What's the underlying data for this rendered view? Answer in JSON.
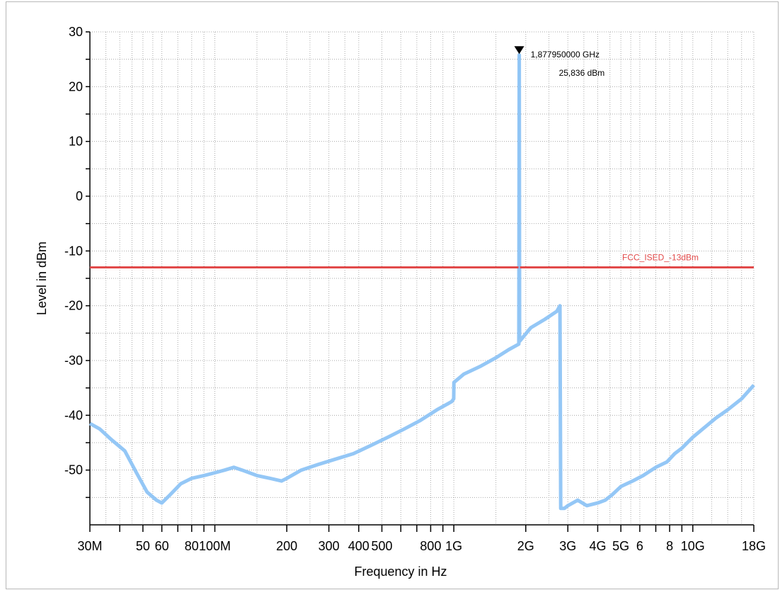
{
  "chart_data": {
    "type": "line",
    "xlabel": "Frequency in Hz",
    "ylabel": "Level in dBm",
    "xscale": "log",
    "xlim_hz": [
      30000000,
      18000000000
    ],
    "ylim": [
      -60,
      30
    ],
    "grid": true,
    "y_ticks": [
      {
        "value": 30,
        "label": "30"
      },
      {
        "value": 20,
        "label": "20"
      },
      {
        "value": 10,
        "label": "10"
      },
      {
        "value": 0,
        "label": "0"
      },
      {
        "value": -10,
        "label": "-10"
      },
      {
        "value": -20,
        "label": "-20"
      },
      {
        "value": -30,
        "label": "-30"
      },
      {
        "value": -40,
        "label": "-40"
      },
      {
        "value": -50,
        "label": "-50"
      }
    ],
    "x_ticks": [
      {
        "value": 30000000,
        "label": "30M"
      },
      {
        "value": 50000000,
        "label": "50"
      },
      {
        "value": 60000000,
        "label": "60"
      },
      {
        "value": 80000000,
        "label": "80"
      },
      {
        "value": 100000000,
        "label": "100M"
      },
      {
        "value": 200000000,
        "label": "200"
      },
      {
        "value": 300000000,
        "label": "300"
      },
      {
        "value": 400000000,
        "label": "400"
      },
      {
        "value": 500000000,
        "label": "500"
      },
      {
        "value": 800000000,
        "label": "800"
      },
      {
        "value": 1000000000,
        "label": "1G"
      },
      {
        "value": 2000000000,
        "label": "2G"
      },
      {
        "value": 3000000000,
        "label": "3G"
      },
      {
        "value": 4000000000,
        "label": "4G"
      },
      {
        "value": 5000000000,
        "label": "5G"
      },
      {
        "value": 6000000000,
        "label": "6"
      },
      {
        "value": 8000000000,
        "label": "8"
      },
      {
        "value": 10000000000,
        "label": "10G"
      },
      {
        "value": 18000000000,
        "label": "18G"
      }
    ],
    "minor_x_ticks": [
      40000000,
      70000000,
      90000000,
      600000000,
      700000000,
      900000000,
      7000000000,
      9000000000
    ],
    "series": [
      {
        "color": "#8ec4f5",
        "x": [
          30000000,
          33000000,
          37000000,
          42000000,
          47000000,
          52000000,
          57000000,
          60000000,
          65000000,
          72000000,
          80000000,
          90000000,
          100000000,
          110000000,
          120000000,
          130000000,
          150000000,
          170000000,
          190000000,
          200000000,
          230000000,
          270000000,
          320000000,
          380000000,
          450000000,
          530000000,
          620000000,
          720000000,
          850000000,
          980000000,
          999000000,
          1001000000,
          1100000000,
          1300000000,
          1500000000,
          1700000000,
          1870000000,
          1877950000,
          1885000000,
          2100000000,
          2400000000,
          2700000000,
          2780000000,
          2800000000,
          2900000000,
          3000000000,
          3300000000,
          3600000000,
          4000000000,
          4300000000,
          4600000000,
          5000000000,
          5600000000,
          6200000000,
          7000000000,
          7800000000,
          8400000000,
          9000000000,
          10000000000,
          11000000000,
          12500000000,
          14000000000,
          16000000000,
          18000000000
        ],
        "values": [
          -41.5,
          -42.5,
          -44.5,
          -46.5,
          -50.5,
          -54,
          -55.5,
          -56,
          -54.5,
          -52.5,
          -51.5,
          -51,
          -50.5,
          -50,
          -49.5,
          -50,
          -51,
          -51.5,
          -52,
          -51.5,
          -50,
          -49,
          -48,
          -47,
          -45.5,
          -44,
          -42.5,
          -41,
          -39,
          -37.5,
          -37,
          -34,
          -32.5,
          -31,
          -29.5,
          -28,
          -27,
          25.8,
          -26.5,
          -24,
          -22.5,
          -21,
          -20,
          -57,
          -57,
          -56.5,
          -55.5,
          -56.5,
          -56,
          -55.5,
          -54.5,
          -53,
          -52,
          -51,
          -49.5,
          -48.5,
          -47,
          -46,
          -44,
          -42.5,
          -40.5,
          -39,
          -37,
          -34.5
        ]
      }
    ],
    "limit_line": {
      "value": -13,
      "label": "FCC_ISED_-13dBm",
      "color": "#e24a4a"
    },
    "marker": {
      "frequency_hz": 1877950000,
      "level_dbm": 25.836,
      "frequency_text": "1,877950000 GHz",
      "level_text": "25,836 dBm"
    }
  }
}
